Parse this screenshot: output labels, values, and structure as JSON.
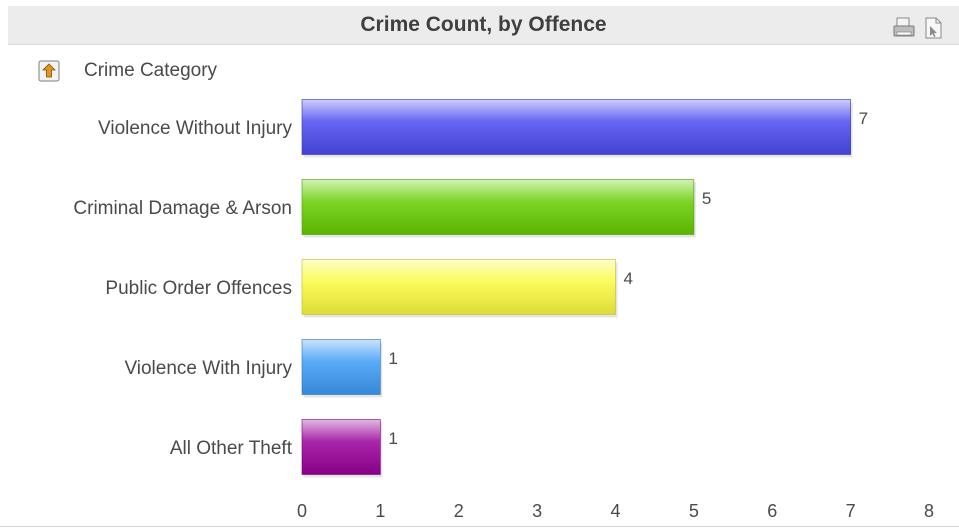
{
  "header": {
    "title": "Crime Count, by Offence",
    "icons": [
      "print-icon",
      "export-icon"
    ]
  },
  "drill_control": {
    "icon": "drill-up-icon",
    "label": "Crime Category"
  },
  "chart_data": {
    "type": "bar",
    "orientation": "horizontal",
    "title": "Crime Count, by Offence",
    "xlabel": "",
    "ylabel": "Crime Category",
    "categories": [
      "Violence Without Injury",
      "Criminal Damage & Arson",
      "Public Order Offences",
      "Violence With Injury",
      "All Other Theft"
    ],
    "values": [
      7,
      5,
      4,
      1,
      1
    ],
    "data_labels": [
      "7",
      "5",
      "4",
      "1",
      "1"
    ],
    "colors": [
      "#4b4bf0",
      "#66cc00",
      "#fafa40",
      "#3d9bf5",
      "#990099"
    ],
    "xlim": [
      0,
      8
    ],
    "xticks": [
      0,
      1,
      2,
      3,
      4,
      5,
      6,
      7,
      8
    ],
    "grid": false,
    "legend": "none"
  }
}
